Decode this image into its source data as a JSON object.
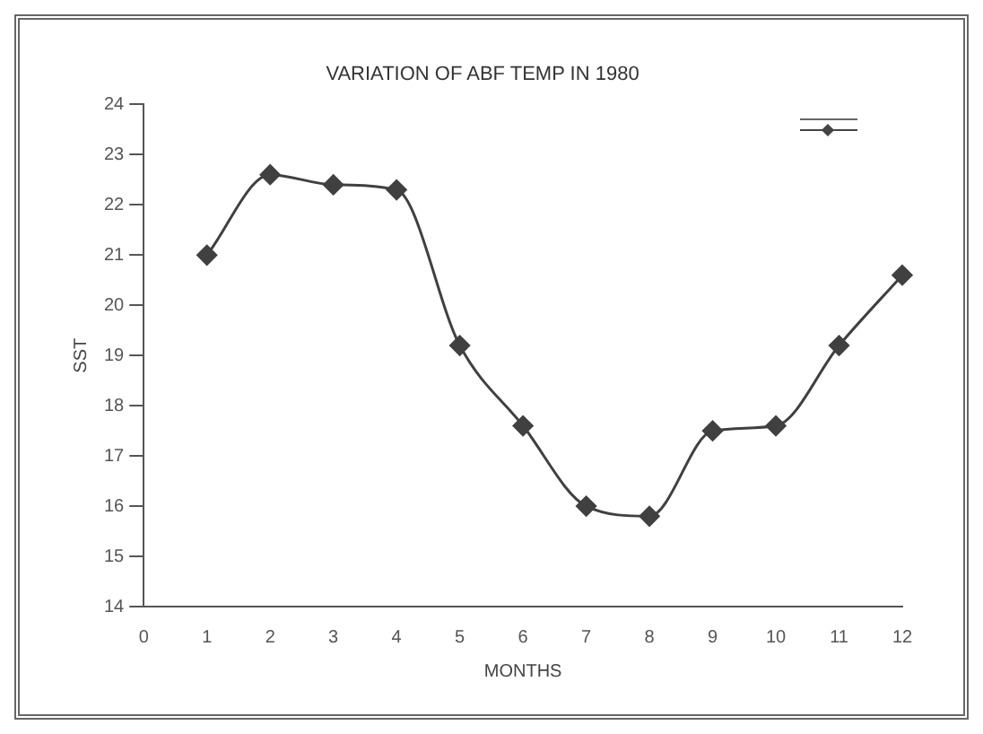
{
  "chart_data": {
    "type": "line",
    "title": "VARIATION OF ABF TEMP IN 1980",
    "xlabel": "MONTHS",
    "ylabel": "SST",
    "x": [
      1,
      2,
      3,
      4,
      5,
      6,
      7,
      8,
      9,
      10,
      11,
      12
    ],
    "series": [
      {
        "color": "#404040",
        "values": [
          21.0,
          22.6,
          22.4,
          22.3,
          19.2,
          17.6,
          16.0,
          15.8,
          17.5,
          17.6,
          19.2,
          20.6
        ]
      }
    ],
    "xlim": [
      0,
      12
    ],
    "xticks": [
      0,
      1,
      2,
      3,
      4,
      5,
      6,
      7,
      8,
      9,
      10,
      11,
      12
    ],
    "ylim": [
      14,
      24
    ],
    "yticks": [
      14,
      15,
      16,
      17,
      18,
      19,
      20,
      21,
      22,
      23,
      24
    ],
    "marker": "diamond",
    "line_style": "solid",
    "grid": false
  }
}
